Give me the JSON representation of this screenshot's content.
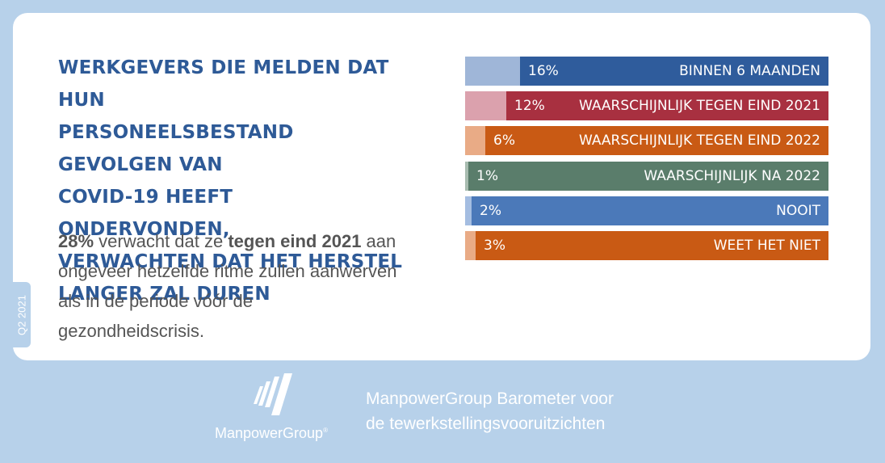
{
  "headline": {
    "lines": [
      "WERKGEVERS DIE MELDEN DAT HUN",
      "PERSONEELSBESTAND GEVOLGEN VAN",
      "COVID-19 HEEFT ONDERVONDEN,",
      "VERWACHTEN DAT HET HERSTEL",
      "LANGER ZAL DUREN"
    ]
  },
  "summary": {
    "percent": "28%",
    "text_1": " verwacht dat ze ",
    "highlight": "tegen eind 2021",
    "text_2": " aan ongeveer hetzelfde ritme zullen aanwerven als in de periode vóór de gezondheidscrisis."
  },
  "side_tab": {
    "label": "Q2 2021"
  },
  "footer": {
    "logo_text": "ManpowerGroup",
    "logo_mark": "®",
    "title_lines": [
      "ManpowerGroup Barometer voor",
      "de tewerkstellingsvooruitzichten"
    ]
  },
  "chart_data": {
    "type": "bar",
    "orientation": "horizontal",
    "unit": "%",
    "categories": [
      "BINNEN 6 MAANDEN",
      "WAARSCHIJNLIJK TEGEN EIND 2021",
      "WAARSCHIJNLIJK TEGEN EIND 2022",
      "WAARSCHIJNLIJK NA 2022",
      "NOOIT",
      "WEET HET NIET"
    ],
    "values": [
      16,
      12,
      6,
      1,
      2,
      3
    ],
    "value_labels": [
      "16%",
      "12%",
      "6%",
      "1%",
      "2%",
      "3%"
    ],
    "xlim": [
      0,
      100
    ],
    "grid": false,
    "legend": "none",
    "colors": {
      "dark": [
        "#2f5c9c",
        "#a83040",
        "#c95a14",
        "#5a7d6b",
        "#4b79b9",
        "#c95a14"
      ],
      "light": [
        "#9fb6d8",
        "#dba1ad",
        "#e9ab86",
        "#a8bcb0",
        "#a4bde1",
        "#e9ab86"
      ]
    }
  }
}
